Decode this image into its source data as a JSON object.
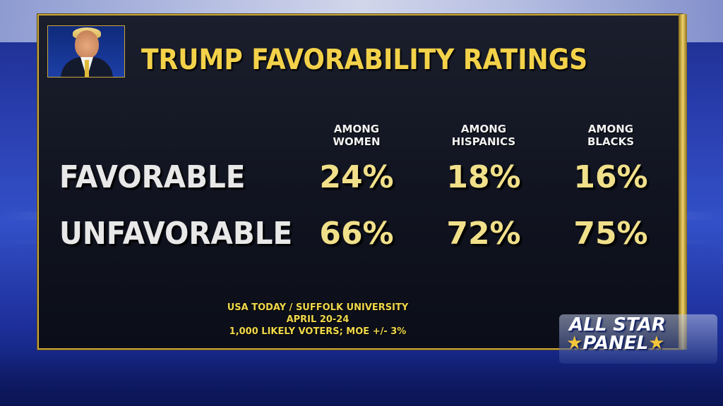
{
  "title": "TRUMP FAVORABILITY RATINGS",
  "chart_data": {
    "type": "table",
    "title": "TRUMP FAVORABILITY RATINGS",
    "columns": [
      {
        "line1": "AMONG",
        "line2": "WOMEN"
      },
      {
        "line1": "AMONG",
        "line2": "HISPANICS"
      },
      {
        "line1": "AMONG",
        "line2": "BLACKS"
      }
    ],
    "rows": [
      {
        "label": "FAVORABLE",
        "values": [
          "24%",
          "18%",
          "16%"
        ]
      },
      {
        "label": "UNFAVORABLE",
        "values": [
          "66%",
          "72%",
          "75%"
        ]
      }
    ],
    "numeric": {
      "FAVORABLE": [
        24,
        18,
        16
      ],
      "UNFAVORABLE": [
        66,
        72,
        75
      ]
    }
  },
  "source": {
    "line1": "USA TODAY / SUFFOLK UNIVERSITY",
    "line2": "APRIL 20-24",
    "line3": "1,000 LIKELY VOTERS; MOE +/- 3%"
  },
  "logo": {
    "line1": "ALL STAR",
    "line2": "PANEL",
    "star_glyph": "★"
  },
  "colors": {
    "title": "#f3d24a",
    "values": "#f1e08a",
    "labels": "#e8e8e8",
    "border": "#c9a63a"
  }
}
